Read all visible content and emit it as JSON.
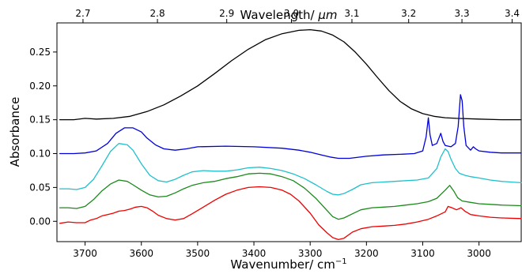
{
  "chart_data": {
    "type": "line",
    "title": "",
    "xlabel": "Wavenumber/ cm",
    "xlabel_sup": "−1",
    "ylabel": "Absorbance",
    "top_xlabel_prefix": "Wavelength/ ",
    "top_xlabel_unit": "μm",
    "xlim": [
      3750,
      2925
    ],
    "ylim": [
      -0.03,
      0.293
    ],
    "x_ticks": [
      3700,
      3600,
      3500,
      3400,
      3300,
      3200,
      3100,
      3000
    ],
    "x_tick_labels": [
      "3700",
      "3600",
      "3500",
      "3400",
      "3300",
      "3200",
      "3100",
      "3000"
    ],
    "y_ticks": [
      0.0,
      0.05,
      0.1,
      0.15,
      0.2,
      0.25
    ],
    "y_tick_labels": [
      "0.00",
      "0.05",
      "0.10",
      "0.15",
      "0.20",
      "0.25"
    ],
    "top_ticks_um": [
      2.7,
      2.8,
      2.9,
      3.0,
      3.1,
      3.2,
      3.3,
      3.4
    ],
    "top_tick_labels": [
      "2.7",
      "2.8",
      "2.9",
      "3.0",
      "3.1",
      "3.2",
      "3.3",
      "3.4"
    ],
    "grid": false,
    "series": [
      {
        "color": "#000000",
        "x": [
          3745,
          3720,
          3700,
          3680,
          3650,
          3620,
          3590,
          3560,
          3530,
          3500,
          3470,
          3440,
          3410,
          3380,
          3350,
          3320,
          3300,
          3280,
          3260,
          3240,
          3220,
          3200,
          3180,
          3160,
          3140,
          3120,
          3100,
          3080,
          3060,
          3040,
          3000,
          2960,
          2925
        ],
        "y": [
          0.15,
          0.15,
          0.152,
          0.151,
          0.152,
          0.155,
          0.162,
          0.172,
          0.185,
          0.2,
          0.218,
          0.237,
          0.254,
          0.268,
          0.277,
          0.282,
          0.283,
          0.281,
          0.275,
          0.265,
          0.25,
          0.232,
          0.212,
          0.193,
          0.177,
          0.166,
          0.159,
          0.155,
          0.153,
          0.152,
          0.151,
          0.15,
          0.15
        ]
      },
      {
        "color": "#0000dd",
        "x": [
          3745,
          3720,
          3700,
          3680,
          3660,
          3645,
          3630,
          3615,
          3600,
          3590,
          3575,
          3560,
          3540,
          3520,
          3500,
          3450,
          3400,
          3350,
          3320,
          3300,
          3280,
          3265,
          3250,
          3230,
          3200,
          3170,
          3140,
          3115,
          3100,
          3094,
          3090,
          3087,
          3083,
          3075,
          3068,
          3064,
          3060,
          3050,
          3042,
          3037,
          3033,
          3030,
          3027,
          3023,
          3015,
          3010,
          3006,
          3000,
          2980,
          2960,
          2925
        ],
        "y": [
          0.1,
          0.1,
          0.101,
          0.104,
          0.115,
          0.13,
          0.138,
          0.138,
          0.132,
          0.123,
          0.113,
          0.107,
          0.105,
          0.107,
          0.11,
          0.111,
          0.11,
          0.108,
          0.105,
          0.102,
          0.098,
          0.095,
          0.093,
          0.093,
          0.096,
          0.098,
          0.099,
          0.1,
          0.104,
          0.125,
          0.153,
          0.128,
          0.112,
          0.115,
          0.13,
          0.118,
          0.112,
          0.11,
          0.115,
          0.14,
          0.187,
          0.178,
          0.14,
          0.112,
          0.105,
          0.11,
          0.107,
          0.104,
          0.102,
          0.101,
          0.101
        ]
      },
      {
        "color": "#1fc0cc",
        "x": [
          3745,
          3730,
          3715,
          3700,
          3685,
          3670,
          3655,
          3640,
          3625,
          3615,
          3600,
          3585,
          3570,
          3555,
          3540,
          3525,
          3510,
          3490,
          3470,
          3450,
          3430,
          3410,
          3390,
          3370,
          3350,
          3330,
          3310,
          3290,
          3270,
          3260,
          3250,
          3240,
          3225,
          3210,
          3190,
          3170,
          3150,
          3130,
          3110,
          3090,
          3075,
          3068,
          3060,
          3055,
          3050,
          3042,
          3035,
          3025,
          3015,
          3000,
          2980,
          2960,
          2925
        ],
        "y": [
          0.048,
          0.048,
          0.047,
          0.05,
          0.062,
          0.082,
          0.103,
          0.115,
          0.113,
          0.105,
          0.085,
          0.068,
          0.06,
          0.058,
          0.062,
          0.068,
          0.073,
          0.075,
          0.074,
          0.074,
          0.076,
          0.079,
          0.08,
          0.078,
          0.075,
          0.07,
          0.063,
          0.054,
          0.044,
          0.04,
          0.039,
          0.041,
          0.047,
          0.054,
          0.057,
          0.058,
          0.059,
          0.06,
          0.061,
          0.064,
          0.078,
          0.095,
          0.107,
          0.103,
          0.092,
          0.078,
          0.071,
          0.068,
          0.066,
          0.064,
          0.061,
          0.059,
          0.057
        ]
      },
      {
        "color": "#1a8a1a",
        "x": [
          3745,
          3730,
          3715,
          3700,
          3685,
          3670,
          3655,
          3640,
          3625,
          3615,
          3600,
          3585,
          3570,
          3555,
          3540,
          3525,
          3510,
          3490,
          3470,
          3450,
          3430,
          3410,
          3390,
          3370,
          3350,
          3330,
          3310,
          3290,
          3270,
          3260,
          3250,
          3240,
          3225,
          3210,
          3190,
          3170,
          3150,
          3130,
          3110,
          3090,
          3075,
          3060,
          3052,
          3045,
          3038,
          3030,
          3015,
          3000,
          2980,
          2960,
          2925
        ],
        "y": [
          0.02,
          0.02,
          0.019,
          0.022,
          0.032,
          0.045,
          0.055,
          0.061,
          0.059,
          0.054,
          0.046,
          0.039,
          0.036,
          0.037,
          0.042,
          0.048,
          0.053,
          0.057,
          0.059,
          0.063,
          0.066,
          0.07,
          0.071,
          0.07,
          0.066,
          0.06,
          0.049,
          0.034,
          0.016,
          0.007,
          0.003,
          0.005,
          0.011,
          0.017,
          0.02,
          0.021,
          0.022,
          0.024,
          0.026,
          0.029,
          0.034,
          0.046,
          0.053,
          0.045,
          0.035,
          0.03,
          0.028,
          0.026,
          0.025,
          0.024,
          0.023
        ]
      },
      {
        "color": "#ee0000",
        "x": [
          3745,
          3730,
          3715,
          3700,
          3690,
          3680,
          3670,
          3660,
          3650,
          3640,
          3630,
          3620,
          3610,
          3600,
          3590,
          3580,
          3570,
          3555,
          3540,
          3525,
          3510,
          3490,
          3470,
          3450,
          3430,
          3410,
          3390,
          3370,
          3350,
          3335,
          3320,
          3300,
          3285,
          3270,
          3260,
          3250,
          3240,
          3225,
          3210,
          3190,
          3170,
          3150,
          3130,
          3110,
          3090,
          3075,
          3060,
          3055,
          3048,
          3040,
          3032,
          3025,
          3015,
          3000,
          2980,
          2960,
          2925
        ],
        "y": [
          -0.003,
          -0.001,
          -0.002,
          -0.002,
          0.002,
          0.004,
          0.008,
          0.01,
          0.012,
          0.015,
          0.016,
          0.018,
          0.021,
          0.022,
          0.02,
          0.015,
          0.009,
          0.004,
          0.002,
          0.004,
          0.011,
          0.021,
          0.031,
          0.04,
          0.046,
          0.05,
          0.051,
          0.05,
          0.046,
          0.04,
          0.03,
          0.012,
          -0.005,
          -0.017,
          -0.024,
          -0.027,
          -0.025,
          -0.016,
          -0.011,
          -0.008,
          -0.007,
          -0.006,
          -0.004,
          -0.001,
          0.003,
          0.008,
          0.014,
          0.022,
          0.02,
          0.017,
          0.02,
          0.015,
          0.01,
          0.008,
          0.006,
          0.005,
          0.004
        ]
      }
    ]
  }
}
